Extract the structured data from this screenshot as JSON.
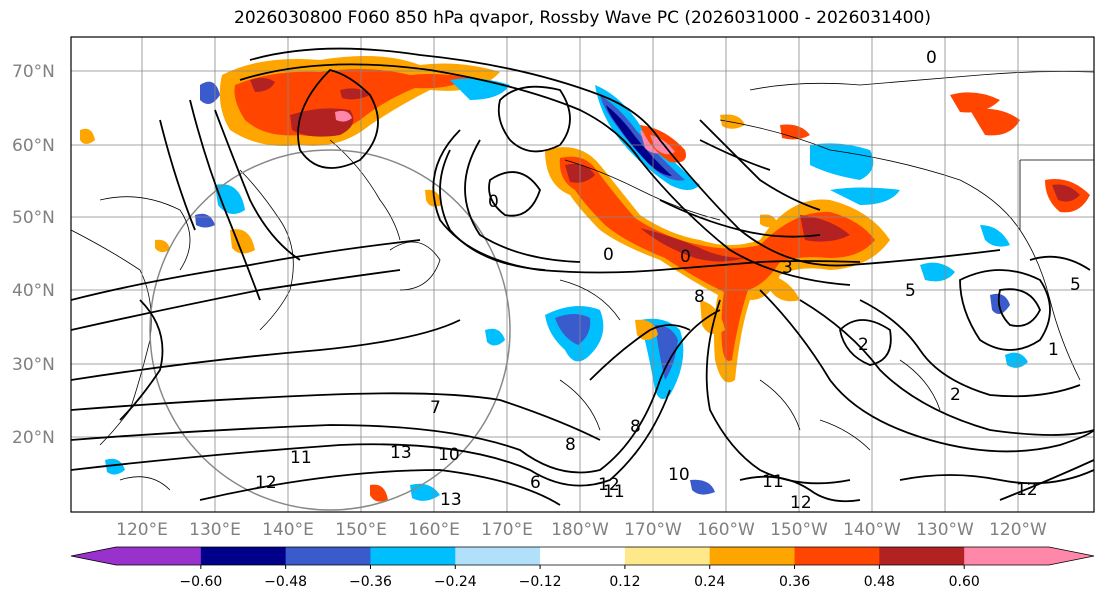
{
  "title": "2026030800 F060 850 hPa qvapor, Rossby Wave PC (2026031000 - 2026031400)",
  "lat_labels": [
    "70°N",
    "60°N",
    "50°N",
    "40°N",
    "30°N",
    "20°N"
  ],
  "lon_labels": [
    "120°E",
    "130°E",
    "140°E",
    "150°E",
    "160°E",
    "170°E",
    "180°W",
    "170°W",
    "160°W",
    "150°W",
    "140°W",
    "130°W",
    "120°W"
  ],
  "colorbar": {
    "colors": [
      "#9932cc",
      "#00008b",
      "#3a5bcc",
      "#00bfff",
      "#b0e0fa",
      "#ffffff",
      "#ffe88a",
      "#ffa500",
      "#ff4500",
      "#b22222",
      "#ff88aa"
    ],
    "ticks": [
      "−0.60",
      "−0.48",
      "−0.36",
      "−0.24",
      "−0.12",
      "0.12",
      "0.24",
      "0.36",
      "0.48",
      "0.60"
    ],
    "extend": "both"
  },
  "contour_labels": [
    "0",
    "0",
    "0",
    "3",
    "5",
    "5",
    "8",
    "2",
    "2",
    "7",
    "8",
    "10",
    "11",
    "13",
    "13",
    "12",
    "12",
    "11",
    "12",
    "10",
    "12",
    "6",
    "11",
    "0",
    "8",
    "1"
  ]
}
